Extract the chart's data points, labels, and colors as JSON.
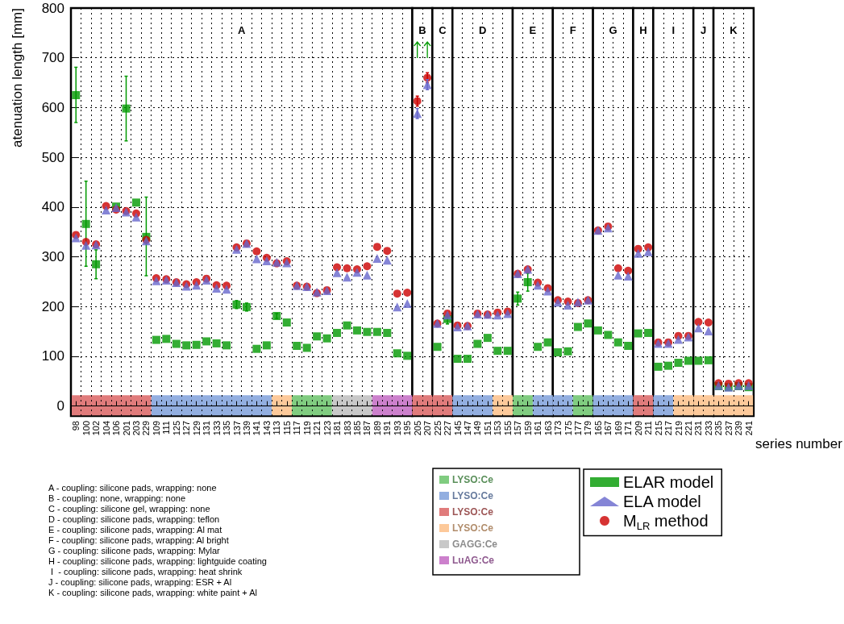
{
  "chart_data": {
    "type": "scatter",
    "xlabel": "series number",
    "ylabel": "atenuation length [mm]",
    "categories": [
      "98",
      "100",
      "102",
      "104",
      "106",
      "201",
      "203",
      "229",
      "109",
      "111",
      "125",
      "127",
      "129",
      "131",
      "133",
      "135",
      "137",
      "139",
      "141",
      "143",
      "113",
      "115",
      "117",
      "119",
      "121",
      "123",
      "181",
      "183",
      "185",
      "187",
      "189",
      "191",
      "193",
      "195",
      "205",
      "207",
      "225",
      "227",
      "145",
      "147",
      "149",
      "151",
      "153",
      "155",
      "157",
      "159",
      "161",
      "163",
      "173",
      "175",
      "177",
      "179",
      "165",
      "167",
      "169",
      "171",
      "209",
      "211",
      "215",
      "217",
      "219",
      "221",
      "231",
      "233",
      "235",
      "237",
      "239",
      "241"
    ],
    "series": [
      {
        "name": "ELAR model",
        "color": "#009900",
        "marker": "square",
        "values": [
          625,
          366,
          285,
          null,
          401,
          598,
          409,
          340,
          133,
          135,
          125,
          122,
          123,
          130,
          126,
          122,
          204,
          199,
          115,
          122,
          181,
          168,
          121,
          117,
          140,
          136,
          147,
          162,
          152,
          149,
          149,
          147,
          106,
          101,
          null,
          null,
          119,
          175,
          95,
          95,
          125,
          137,
          111,
          111,
          216,
          249,
          119,
          128,
          108,
          110,
          159,
          166,
          152,
          143,
          128,
          121,
          146,
          147,
          79,
          81,
          87,
          91,
          91,
          92,
          40,
          38,
          40,
          38
        ],
        "errors": [
          [
            570,
            681
          ],
          [
            281,
            452
          ],
          [
            256,
            314
          ],
          null,
          null,
          [
            533,
            663
          ],
          null,
          [
            262,
            420
          ],
          null,
          null,
          null,
          null,
          null,
          null,
          null,
          null,
          8,
          8,
          null,
          null,
          5,
          null,
          null,
          null,
          null,
          null,
          null,
          null,
          null,
          null,
          null,
          null,
          null,
          null,
          null,
          null,
          null,
          10,
          null,
          null,
          null,
          null,
          null,
          null,
          13,
          18,
          null,
          null,
          null,
          null,
          null,
          null,
          null,
          null,
          null,
          null,
          null,
          null,
          null,
          null,
          null,
          null,
          null,
          null,
          null,
          null,
          null,
          null
        ]
      },
      {
        "name": "ELA model",
        "color": "#6666cc",
        "marker": "triangle",
        "values": [
          338,
          323,
          324,
          394,
          399,
          390,
          380,
          332,
          252,
          253,
          248,
          241,
          243,
          253,
          237,
          235,
          315,
          327,
          296,
          292,
          289,
          288,
          242,
          240,
          229,
          232,
          268,
          259,
          269,
          263,
          297,
          293,
          199,
          206,
          588,
          646,
          166,
          183,
          159,
          161,
          185,
          184,
          183,
          186,
          266,
          275,
          243,
          231,
          209,
          203,
          209,
          213,
          353,
          358,
          263,
          261,
          307,
          310,
          126,
          126,
          134,
          139,
          157,
          151,
          41,
          38,
          41,
          41
        ],
        "errors": [
          null,
          null,
          null,
          null,
          null,
          null,
          null,
          null,
          null,
          null,
          null,
          null,
          null,
          null,
          null,
          null,
          null,
          null,
          null,
          null,
          null,
          null,
          null,
          null,
          null,
          null,
          null,
          null,
          null,
          null,
          null,
          null,
          null,
          null,
          10,
          10,
          null,
          null,
          null,
          null,
          null,
          null,
          null,
          null,
          null,
          null,
          null,
          null,
          null,
          null,
          null,
          null,
          null,
          null,
          null,
          null,
          null,
          null,
          null,
          null,
          null,
          null,
          null,
          null,
          null,
          null,
          null,
          null
        ]
      },
      {
        "name": "M$_{LR}$ method",
        "color": "#cc0000",
        "marker": "circle",
        "values": [
          344,
          330,
          325,
          402,
          395,
          392,
          387,
          334,
          257,
          255,
          249,
          245,
          249,
          256,
          243,
          242,
          319,
          327,
          311,
          298,
          287,
          291,
          242,
          240,
          227,
          233,
          279,
          277,
          275,
          281,
          320,
          312,
          226,
          228,
          613,
          660,
          166,
          186,
          162,
          161,
          186,
          184,
          188,
          190,
          266,
          275,
          248,
          237,
          213,
          210,
          207,
          213,
          353,
          361,
          277,
          272,
          316,
          319,
          128,
          128,
          141,
          141,
          169,
          168,
          46,
          45,
          46,
          46
        ],
        "errors": [
          null,
          null,
          null,
          null,
          null,
          null,
          null,
          null,
          null,
          null,
          null,
          null,
          null,
          null,
          null,
          null,
          null,
          null,
          null,
          null,
          null,
          null,
          null,
          null,
          null,
          null,
          null,
          null,
          null,
          null,
          null,
          null,
          null,
          null,
          10,
          10,
          null,
          null,
          null,
          null,
          null,
          null,
          null,
          null,
          null,
          null,
          null,
          null,
          null,
          null,
          null,
          null,
          null,
          null,
          null,
          null,
          null,
          null,
          null,
          null,
          null,
          null,
          null,
          null,
          null,
          null,
          null,
          null
        ]
      }
    ],
    "ylim": [
      -20,
      800
    ],
    "yticks": [
      0,
      100,
      200,
      300,
      400,
      500,
      600,
      700,
      800
    ],
    "grid": true,
    "legend": "bottom right",
    "bands": [
      {
        "axis": "x",
        "from": "98",
        "to": "195",
        "label": "A",
        "color": "#ffffff"
      },
      {
        "axis": "x",
        "from": "205",
        "to": "207",
        "label": "B",
        "color": "#ffffff"
      },
      {
        "axis": "x",
        "from": "225",
        "to": "227",
        "label": "C",
        "color": "#ffffff"
      },
      {
        "axis": "x",
        "from": "145",
        "to": "155",
        "label": "D",
        "color": "#ffffff"
      },
      {
        "axis": "x",
        "from": "157",
        "to": "163",
        "label": "E",
        "color": "#ffffff"
      },
      {
        "axis": "x",
        "from": "173",
        "to": "179",
        "label": "F",
        "color": "#ffffff"
      },
      {
        "axis": "x",
        "from": "165",
        "to": "171",
        "label": "G",
        "color": "#ffffff"
      },
      {
        "axis": "x",
        "from": "209",
        "to": "211",
        "label": "H",
        "color": "#ffffff"
      },
      {
        "axis": "x",
        "from": "215",
        "to": "221",
        "label": "I",
        "color": "#ffffff"
      },
      {
        "axis": "x",
        "from": "231",
        "to": "233",
        "label": "J",
        "color": "#ffffff"
      },
      {
        "axis": "x",
        "from": "235",
        "to": "241",
        "label": "K",
        "color": "#ffffff"
      },
      {
        "axis": "x",
        "from": "117",
        "to": "123",
        "label": "LYSO:Ce",
        "color": "#80cc80"
      },
      {
        "axis": "x",
        "from": "109",
        "to": "143",
        "label": "LYSO:Ce",
        "color": "#92aee0"
      },
      {
        "axis": "x",
        "from": "98",
        "to": "229",
        "label": "LYSO:Ce",
        "color": "#e07b7b"
      },
      {
        "axis": "x",
        "from": "113",
        "to": "115",
        "label": "LYSO:Ce",
        "color": "#fdc99a"
      },
      {
        "axis": "x",
        "from": "181",
        "to": "187",
        "label": "GAGG:Ce",
        "color": "#c8c8c8"
      },
      {
        "axis": "x",
        "from": "189",
        "to": "195",
        "label": "LuAG:Ce",
        "color": "#cc80cc"
      },
      {
        "axis": "x",
        "from": "205",
        "to": "207",
        "color": "#e07b7b"
      },
      {
        "axis": "x",
        "from": "225",
        "to": "227",
        "color": "#e07b7b"
      },
      {
        "axis": "x",
        "from": "145",
        "to": "151",
        "color": "#92aee0"
      },
      {
        "axis": "x",
        "from": "153",
        "to": "155",
        "color": "#fdc99a"
      },
      {
        "axis": "x",
        "from": "157",
        "to": "159",
        "color": "#80cc80"
      },
      {
        "axis": "x",
        "from": "161",
        "to": "163",
        "color": "#92aee0"
      },
      {
        "axis": "x",
        "from": "173",
        "to": "175",
        "color": "#92aee0"
      },
      {
        "axis": "x",
        "from": "177",
        "to": "179",
        "color": "#80cc80"
      },
      {
        "axis": "x",
        "from": "165",
        "to": "171",
        "color": "#92aee0"
      },
      {
        "axis": "x",
        "from": "209",
        "to": "211",
        "color": "#e07b7b"
      },
      {
        "axis": "x",
        "from": "215",
        "to": "217",
        "color": "#92aee0"
      },
      {
        "axis": "x",
        "from": "219",
        "to": "221",
        "color": "#fdc99a"
      },
      {
        "axis": "x",
        "from": "231",
        "to": "233",
        "color": "#fdc99a"
      },
      {
        "axis": "x",
        "from": "235",
        "to": "241",
        "color": "#fdc99a"
      }
    ],
    "annotations": [
      "A - coupling: silicone pads, wrapping: none",
      "B - coupling: none, wrapping: none",
      "C - coupling: silicone gel, wrapping: none",
      "D - coupling: silicone pads, wrapping: teflon",
      "E - coupling: silicone pads, wrapping: Al mat",
      "F - coupling: silicone pads, wrapping: Al bright",
      "G - coupling: silicone pads, wrapping: Mylar",
      "H - coupling: silicone pads, wrapping: lightguide coating",
      " I  - coupling: silicone pads, wrapping: heat shrink",
      "J - coupling: silicone pads, wrapping: ESR + Al",
      "K - coupling: silicone pads, wrapping: white paint + Al"
    ]
  }
}
